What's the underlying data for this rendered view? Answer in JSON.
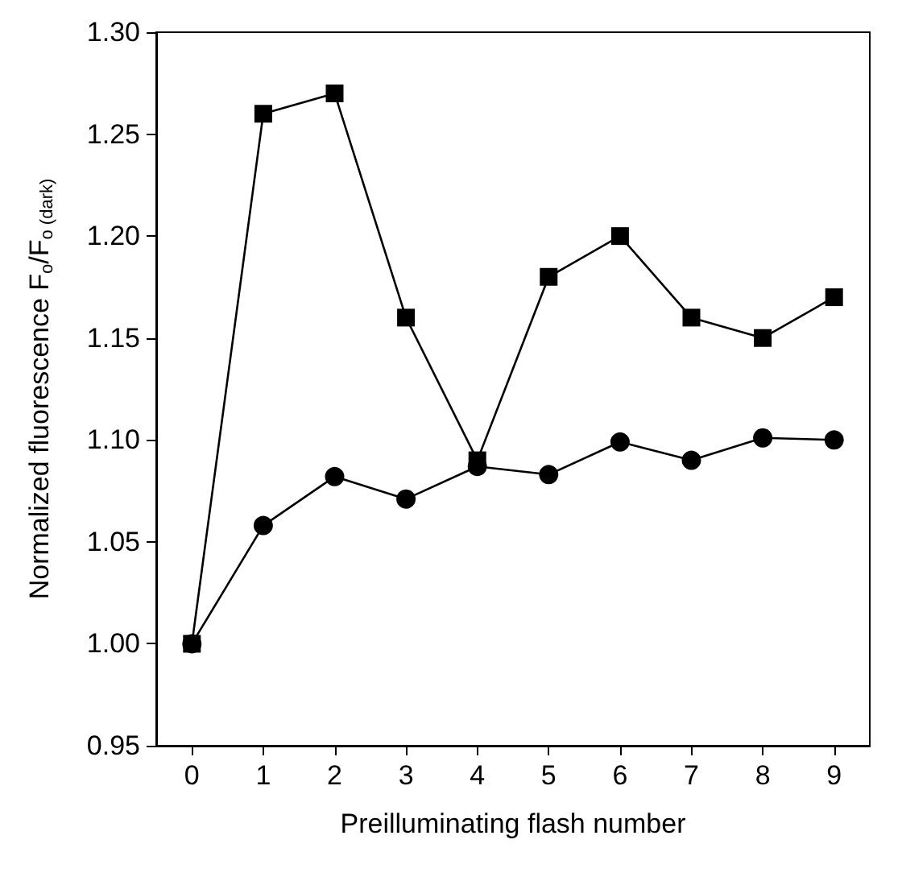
{
  "chart_data": {
    "type": "line",
    "xlabel": "Preilluminating flash number",
    "ylabel": "Normalized fluorescence F$_{o}$/F$_{o (dark)}$",
    "x": [
      0,
      1,
      2,
      3,
      4,
      5,
      6,
      7,
      8,
      9
    ],
    "series": [
      {
        "color": "#000000",
        "marker": "circle",
        "values": [
          1.0,
          1.058,
          1.082,
          1.071,
          1.087,
          1.083,
          1.099,
          1.09,
          1.101,
          1.1
        ]
      },
      {
        "color": "#000000",
        "marker": "square",
        "values": [
          1.0,
          1.26,
          1.27,
          1.16,
          1.09,
          1.18,
          1.2,
          1.16,
          1.15,
          1.17
        ]
      }
    ],
    "xlim": [
      -0.5,
      9.5
    ],
    "xticks": [
      0,
      1,
      2,
      3,
      4,
      5,
      6,
      7,
      8,
      9
    ],
    "ylim": [
      0.95,
      1.3
    ],
    "yticks": [
      {
        "value": 0.95,
        "label": "0.95"
      },
      {
        "value": 1.0,
        "label": "1.00"
      },
      {
        "value": 1.05,
        "label": "1.05"
      },
      {
        "value": 1.1,
        "label": "1.10"
      },
      {
        "value": 1.15,
        "label": "1.15"
      },
      {
        "value": 1.2,
        "label": "1.20"
      },
      {
        "value": 1.25,
        "label": "1.25"
      },
      {
        "value": 1.3,
        "label": "1.30"
      }
    ],
    "grid": false,
    "line_style": "solid"
  }
}
